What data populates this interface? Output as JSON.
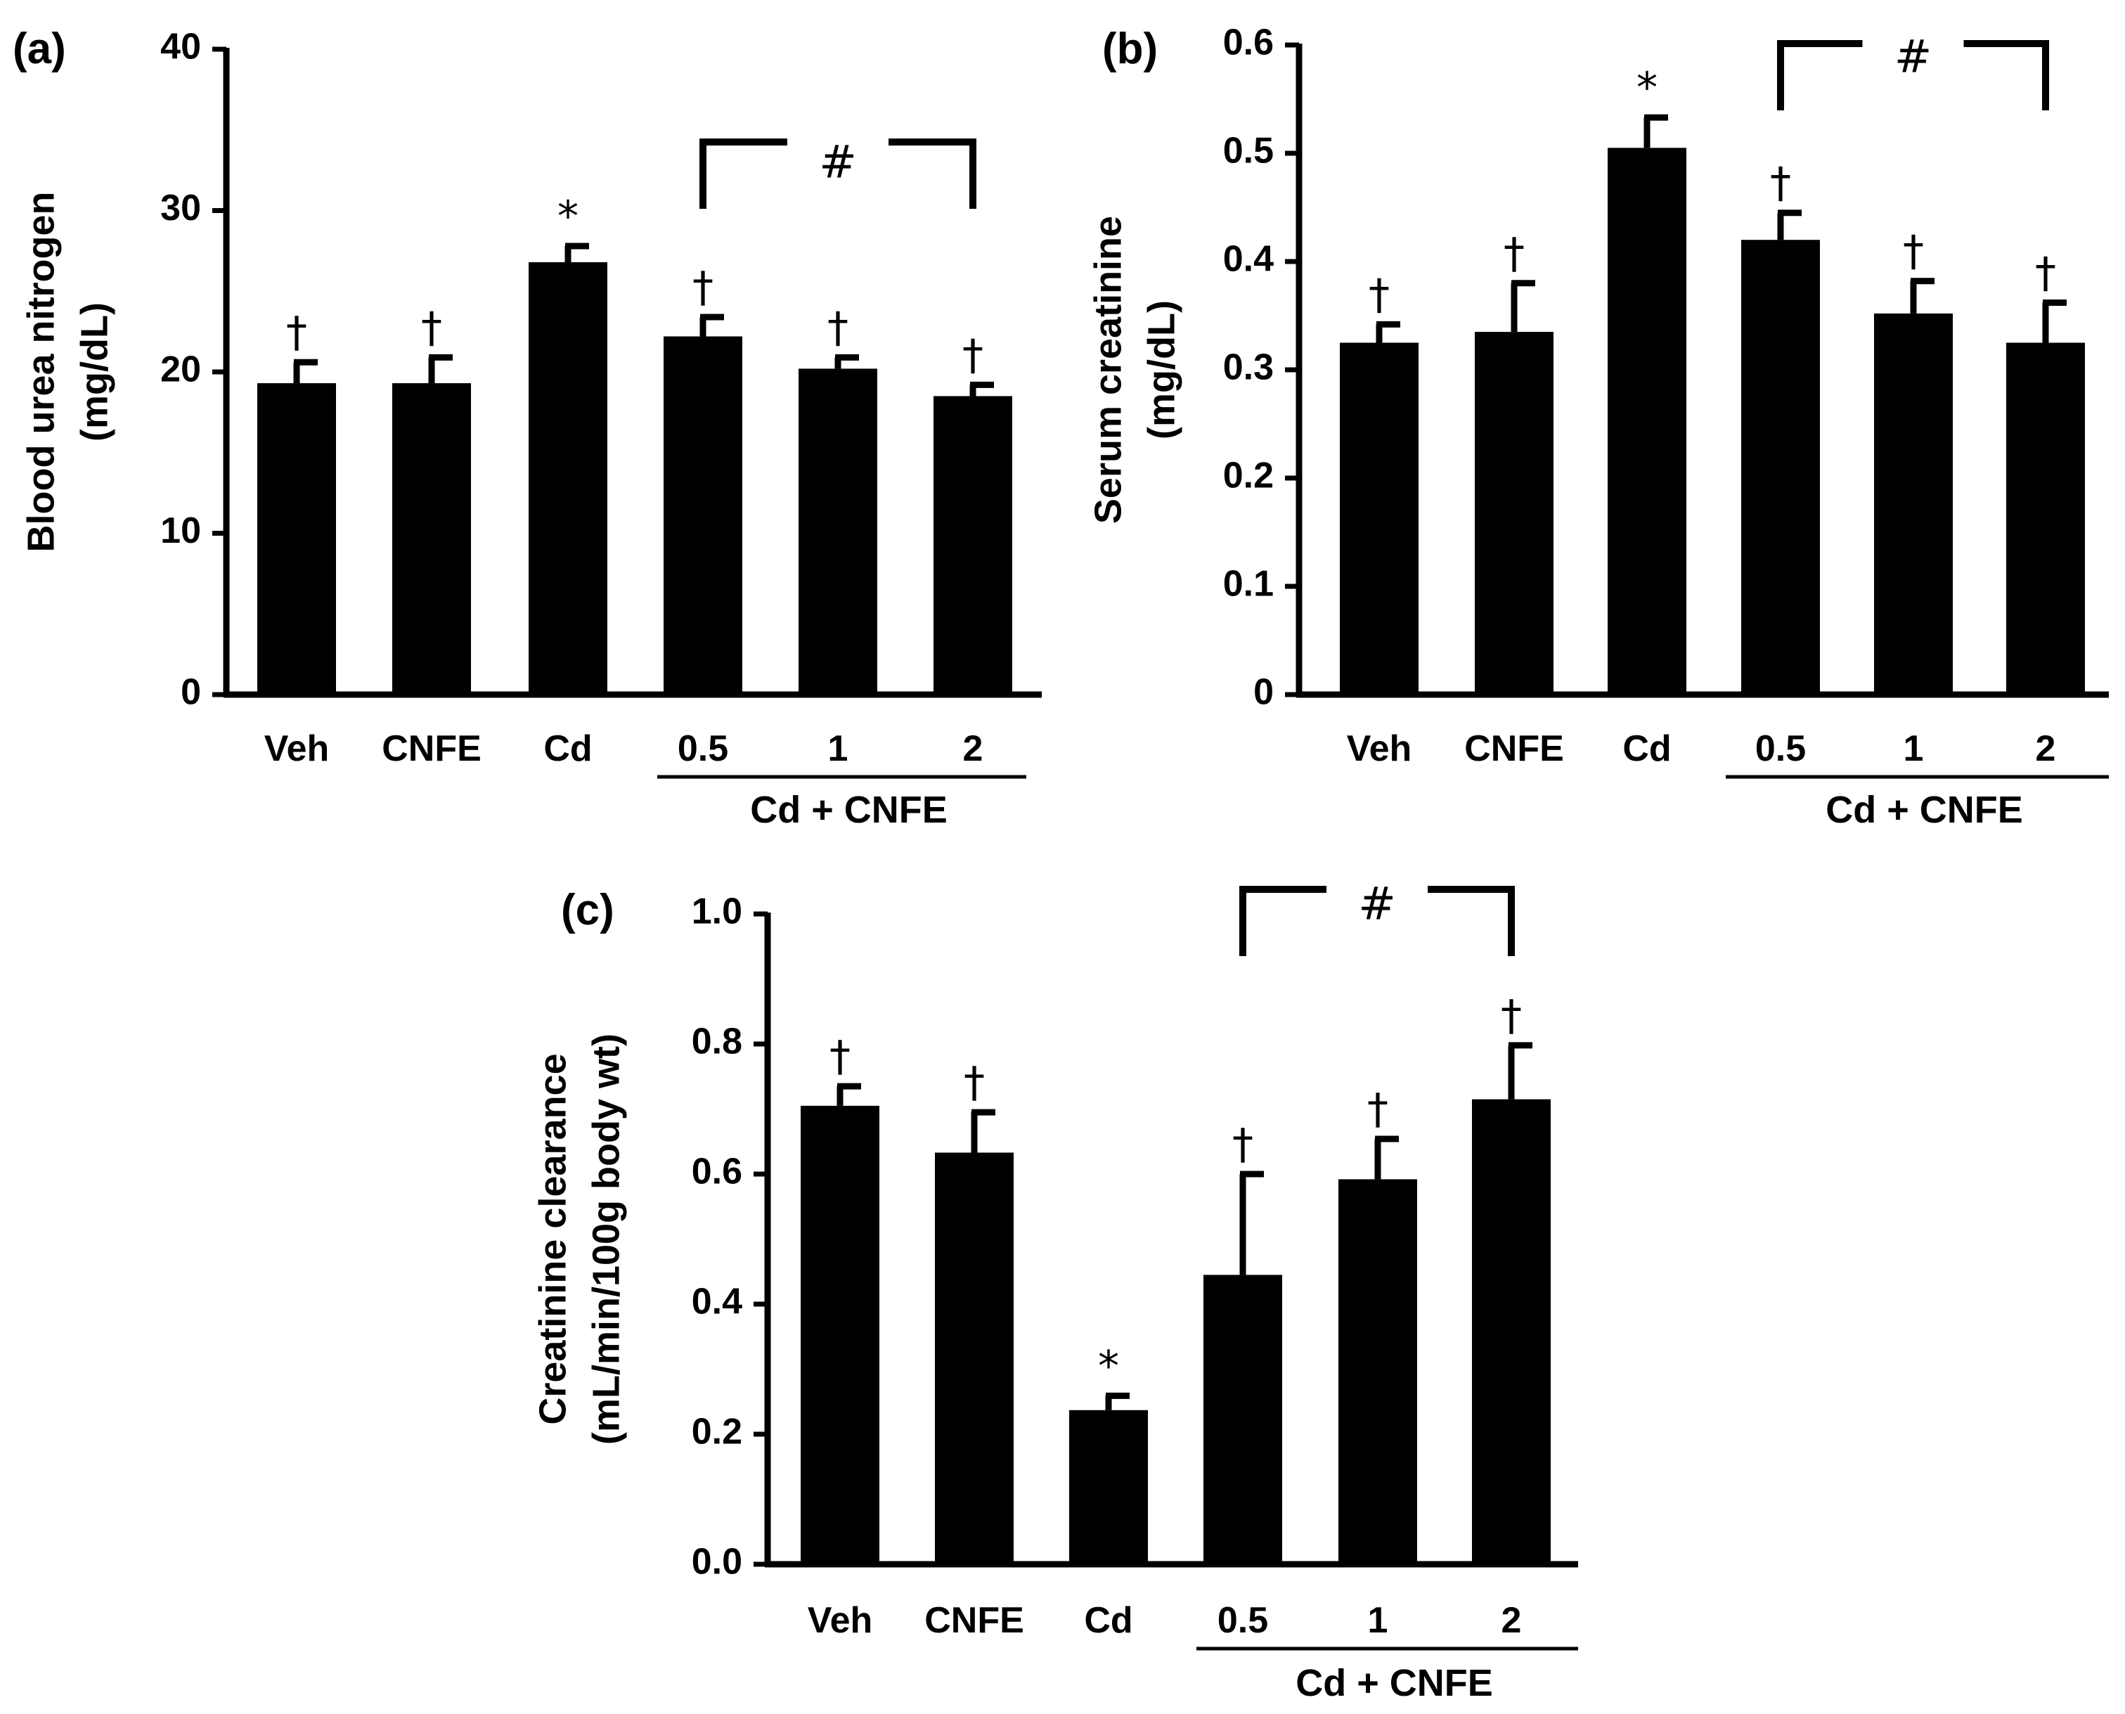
{
  "chart_data": [
    {
      "type": "bar",
      "panel_label": "(a)",
      "ylabel_lines": [
        "Blood urea nitrogen",
        "(mg/dL)"
      ],
      "ylim": [
        0,
        40
      ],
      "yticks": [
        "0",
        "10",
        "20",
        "30",
        "40"
      ],
      "categories": [
        "Veh",
        "CNFE",
        "Cd",
        "0.5",
        "1",
        "2"
      ],
      "values": [
        19.3,
        19.3,
        26.8,
        22.2,
        20.2,
        18.5
      ],
      "errors": [
        1.3,
        1.6,
        1.0,
        1.2,
        0.7,
        0.7
      ],
      "markers": [
        "†",
        "†",
        "*",
        "†",
        "†",
        "†"
      ],
      "group_label": "Cd + CNFE",
      "bracket_label": "#",
      "bracket_from": 3,
      "bracket_to": 5
    },
    {
      "type": "bar",
      "panel_label": "(b)",
      "ylabel_lines": [
        "Serum creatinine",
        "(mg/dL)"
      ],
      "ylim": [
        0,
        0.6
      ],
      "yticks": [
        "0",
        "0.1",
        "0.2",
        "0.3",
        "0.4",
        "0.5",
        "0.6"
      ],
      "categories": [
        "Veh",
        "CNFE",
        "Cd",
        "0.5",
        "1",
        "2"
      ],
      "values": [
        0.325,
        0.335,
        0.505,
        0.42,
        0.352,
        0.325
      ],
      "errors": [
        0.017,
        0.045,
        0.028,
        0.025,
        0.03,
        0.037
      ],
      "markers": [
        "†",
        "†",
        "*",
        "†",
        "†",
        "†"
      ],
      "group_label": "Cd + CNFE",
      "bracket_label": "#",
      "bracket_from": 3,
      "bracket_to": 5
    },
    {
      "type": "bar",
      "panel_label": "(c)",
      "ylabel_lines": [
        "Creatinine clearance",
        "(mL/min/100g body wt)"
      ],
      "ylim": [
        0,
        1.0
      ],
      "yticks": [
        "0.0",
        "0.2",
        "0.4",
        "0.6",
        "0.8",
        "1.0"
      ],
      "categories": [
        "Veh",
        "CNFE",
        "Cd",
        "0.5",
        "1",
        "2"
      ],
      "values": [
        0.705,
        0.633,
        0.237,
        0.445,
        0.592,
        0.715
      ],
      "errors": [
        0.03,
        0.062,
        0.022,
        0.155,
        0.062,
        0.083
      ],
      "markers": [
        "†",
        "†",
        "*",
        "†",
        "†",
        "†"
      ],
      "group_label": "Cd + CNFE",
      "bracket_label": "#",
      "bracket_from": 3,
      "bracket_to": 5
    }
  ]
}
